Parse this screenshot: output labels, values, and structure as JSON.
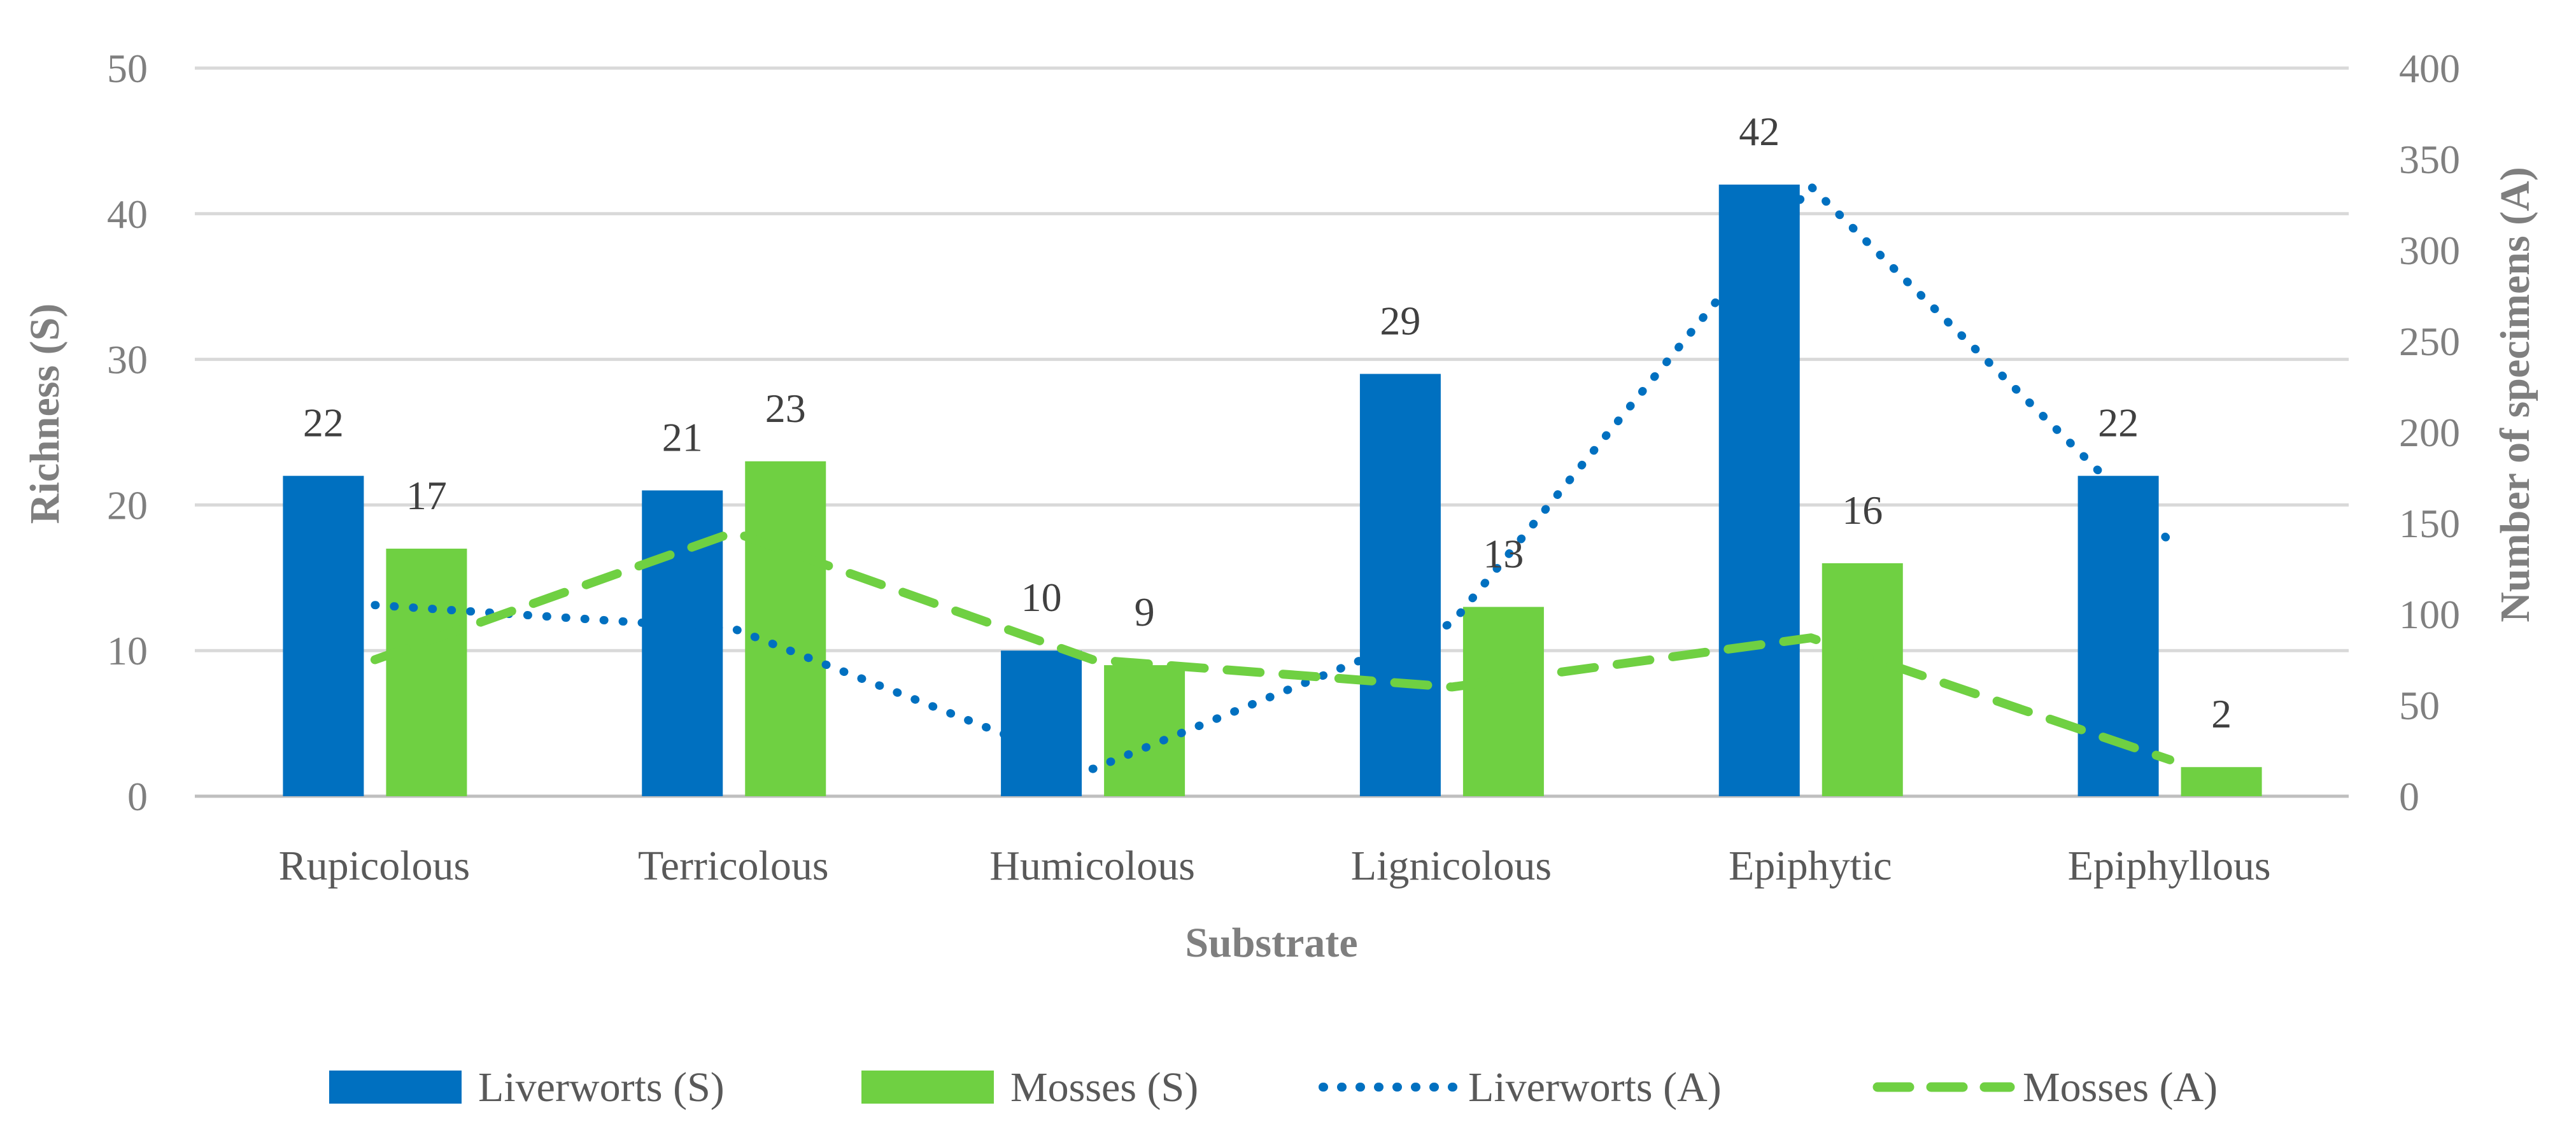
{
  "chart_data": {
    "type": "bar",
    "categories": [
      "Rupicolous",
      "Terricolous",
      "Humicolous",
      "Lignicolous",
      "Epiphytic",
      "Epiphyllous"
    ],
    "xlabel": "Substrate",
    "ylabel": "Richness (S)",
    "y2label": "Number of specimens (A)",
    "ylim": [
      0,
      50
    ],
    "yticks": [
      0,
      10,
      20,
      30,
      40,
      50
    ],
    "y2lim": [
      0,
      400
    ],
    "y2ticks": [
      0,
      50,
      100,
      150,
      200,
      250,
      300,
      350,
      400
    ],
    "grid": true,
    "legend_position": "bottom",
    "bar_series": [
      {
        "name": "Liverworts (S)",
        "color": "#0070C0",
        "values": [
          22,
          21,
          10,
          29,
          42,
          22
        ]
      },
      {
        "name": "Mosses (S)",
        "color": "#6FD042",
        "values": [
          17,
          23,
          9,
          13,
          16,
          2
        ]
      }
    ],
    "line_series": [
      {
        "name": "Liverworts (A)",
        "color": "#0070C0",
        "style": "dotted",
        "axis": "secondary",
        "values": [
          105,
          92,
          15,
          95,
          335,
          140
        ]
      },
      {
        "name": "Mosses (A)",
        "color": "#6FD042",
        "style": "dashed",
        "axis": "secondary",
        "values": [
          75,
          145,
          75,
          60,
          87,
          20
        ]
      }
    ]
  }
}
